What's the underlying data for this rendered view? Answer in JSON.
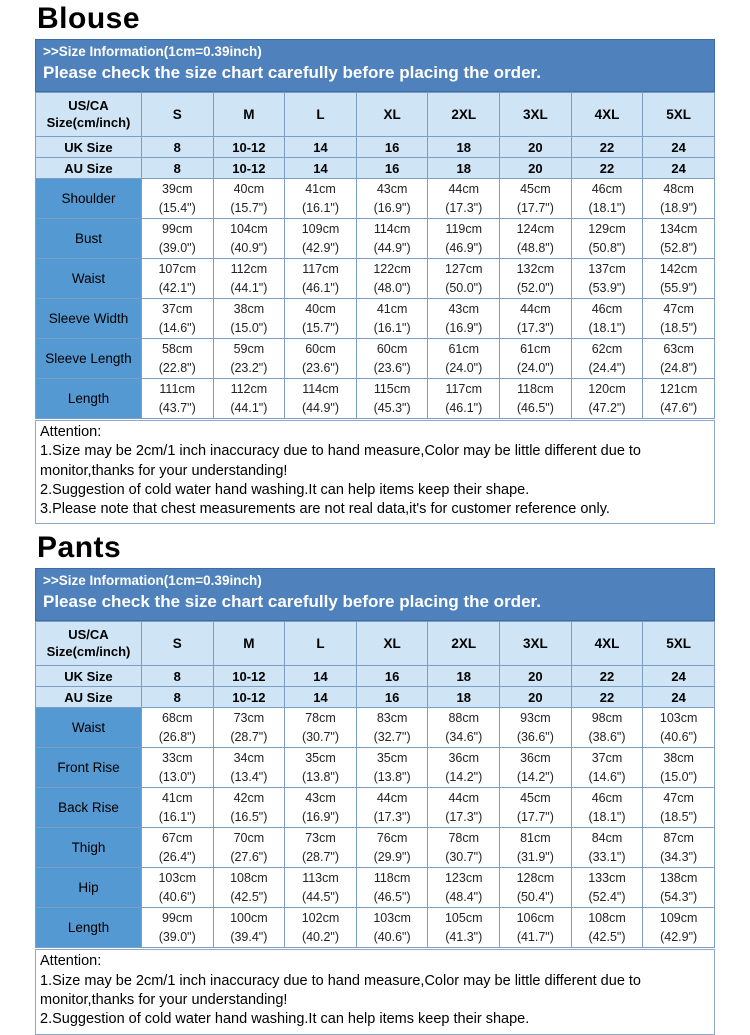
{
  "colors": {
    "banner_bg": "#4F81BD",
    "header_cell_bg": "#CFE4F4",
    "label_cell_bg": "#5599D2",
    "border": "#7D9EC4"
  },
  "blouse": {
    "title": "Blouse",
    "banner": {
      "line1": ">>Size Information(1cm=0.39inch)",
      "line2": "Please check the size chart carefully before placing the order."
    },
    "table": {
      "corner": [
        "US/CA",
        "Size(cm/inch)"
      ],
      "sizes": [
        "S",
        "M",
        "L",
        "XL",
        "2XL",
        "3XL",
        "4XL",
        "5XL"
      ],
      "size_rows": [
        {
          "label": "UK Size",
          "values": [
            "8",
            "10-12",
            "14",
            "16",
            "18",
            "20",
            "22",
            "24"
          ]
        },
        {
          "label": "AU Size",
          "values": [
            "8",
            "10-12",
            "14",
            "16",
            "18",
            "20",
            "22",
            "24"
          ]
        }
      ],
      "measure_rows": [
        {
          "label": "Shoulder",
          "cm": [
            "39cm",
            "40cm",
            "41cm",
            "43cm",
            "44cm",
            "45cm",
            "46cm",
            "48cm"
          ],
          "inch": [
            "(15.4\")",
            "(15.7\")",
            "(16.1\")",
            "(16.9\")",
            "(17.3\")",
            "(17.7\")",
            "(18.1\")",
            "(18.9\")"
          ]
        },
        {
          "label": "Bust",
          "cm": [
            "99cm",
            "104cm",
            "109cm",
            "114cm",
            "119cm",
            "124cm",
            "129cm",
            "134cm"
          ],
          "inch": [
            "(39.0\")",
            "(40.9\")",
            "(42.9\")",
            "(44.9\")",
            "(46.9\")",
            "(48.8\")",
            "(50.8\")",
            "(52.8\")"
          ]
        },
        {
          "label": "Waist",
          "cm": [
            "107cm",
            "112cm",
            "117cm",
            "122cm",
            "127cm",
            "132cm",
            "137cm",
            "142cm"
          ],
          "inch": [
            "(42.1\")",
            "(44.1\")",
            "(46.1\")",
            "(48.0\")",
            "(50.0\")",
            "(52.0\")",
            "(53.9\")",
            "(55.9\")"
          ]
        },
        {
          "label": "Sleeve Width",
          "cm": [
            "37cm",
            "38cm",
            "40cm",
            "41cm",
            "43cm",
            "44cm",
            "46cm",
            "47cm"
          ],
          "inch": [
            "(14.6\")",
            "(15.0\")",
            "(15.7\")",
            "(16.1\")",
            "(16.9\")",
            "(17.3\")",
            "(18.1\")",
            "(18.5\")"
          ]
        },
        {
          "label": "Sleeve Length",
          "cm": [
            "58cm",
            "59cm",
            "60cm",
            "60cm",
            "61cm",
            "61cm",
            "62cm",
            "63cm"
          ],
          "inch": [
            "(22.8\")",
            "(23.2\")",
            "(23.6\")",
            "(23.6\")",
            "(24.0\")",
            "(24.0\")",
            "(24.4\")",
            "(24.8\")"
          ]
        },
        {
          "label": "Length",
          "cm": [
            "111cm",
            "112cm",
            "114cm",
            "115cm",
            "117cm",
            "118cm",
            "120cm",
            "121cm"
          ],
          "inch": [
            "(43.7\")",
            "(44.1\")",
            "(44.9\")",
            "(45.3\")",
            "(46.1\")",
            "(46.5\")",
            "(47.2\")",
            "(47.6\")"
          ]
        }
      ]
    },
    "attention": [
      "Attention:",
      "1.Size may be 2cm/1 inch inaccuracy due to hand measure,Color may be little different due to monitor,thanks for your understanding!",
      "2.Suggestion of cold water hand washing.It can help items keep their shape.",
      "3.Please note that chest measurements are not real data,it's for customer reference only."
    ]
  },
  "pants": {
    "title": "Pants",
    "banner": {
      "line1": ">>Size Information(1cm=0.39inch)",
      "line2": "Please check the size chart carefully before placing the order."
    },
    "table": {
      "corner": [
        "US/CA",
        "Size(cm/inch)"
      ],
      "sizes": [
        "S",
        "M",
        "L",
        "XL",
        "2XL",
        "3XL",
        "4XL",
        "5XL"
      ],
      "size_rows": [
        {
          "label": "UK Size",
          "values": [
            "8",
            "10-12",
            "14",
            "16",
            "18",
            "20",
            "22",
            "24"
          ]
        },
        {
          "label": "AU Size",
          "values": [
            "8",
            "10-12",
            "14",
            "16",
            "18",
            "20",
            "22",
            "24"
          ]
        }
      ],
      "measure_rows": [
        {
          "label": "Waist",
          "cm": [
            "68cm",
            "73cm",
            "78cm",
            "83cm",
            "88cm",
            "93cm",
            "98cm",
            "103cm"
          ],
          "inch": [
            "(26.8\")",
            "(28.7\")",
            "(30.7\")",
            "(32.7\")",
            "(34.6\")",
            "(36.6\")",
            "(38.6\")",
            "(40.6\")"
          ]
        },
        {
          "label": "Front Rise",
          "cm": [
            "33cm",
            "34cm",
            "35cm",
            "35cm",
            "36cm",
            "36cm",
            "37cm",
            "38cm"
          ],
          "inch": [
            "(13.0\")",
            "(13.4\")",
            "(13.8\")",
            "(13.8\")",
            "(14.2\")",
            "(14.2\")",
            "(14.6\")",
            "(15.0\")"
          ]
        },
        {
          "label": "Back Rise",
          "cm": [
            "41cm",
            "42cm",
            "43cm",
            "44cm",
            "44cm",
            "45cm",
            "46cm",
            "47cm"
          ],
          "inch": [
            "(16.1\")",
            "(16.5\")",
            "(16.9\")",
            "(17.3\")",
            "(17.3\")",
            "(17.7\")",
            "(18.1\")",
            "(18.5\")"
          ]
        },
        {
          "label": "Thigh",
          "cm": [
            "67cm",
            "70cm",
            "73cm",
            "76cm",
            "78cm",
            "81cm",
            "84cm",
            "87cm"
          ],
          "inch": [
            "(26.4\")",
            "(27.6\")",
            "(28.7\")",
            "(29.9\")",
            "(30.7\")",
            "(31.9\")",
            "(33.1\")",
            "(34.3\")"
          ]
        },
        {
          "label": "Hip",
          "cm": [
            "103cm",
            "108cm",
            "113cm",
            "118cm",
            "123cm",
            "128cm",
            "133cm",
            "138cm"
          ],
          "inch": [
            "(40.6\")",
            "(42.5\")",
            "(44.5\")",
            "(46.5\")",
            "(48.4\")",
            "(50.4\")",
            "(52.4\")",
            "(54.3\")"
          ]
        },
        {
          "label": "Length",
          "cm": [
            "99cm",
            "100cm",
            "102cm",
            "103cm",
            "105cm",
            "106cm",
            "108cm",
            "109cm"
          ],
          "inch": [
            "(39.0\")",
            "(39.4\")",
            "(40.2\")",
            "(40.6\")",
            "(41.3\")",
            "(41.7\")",
            "(42.5\")",
            "(42.9\")"
          ]
        }
      ]
    },
    "attention": [
      "Attention:",
      "1.Size may be 2cm/1 inch inaccuracy due to hand measure,Color may be little different due to monitor,thanks for your understanding!",
      "2.Suggestion of cold water hand washing.It can help items keep their shape."
    ]
  }
}
